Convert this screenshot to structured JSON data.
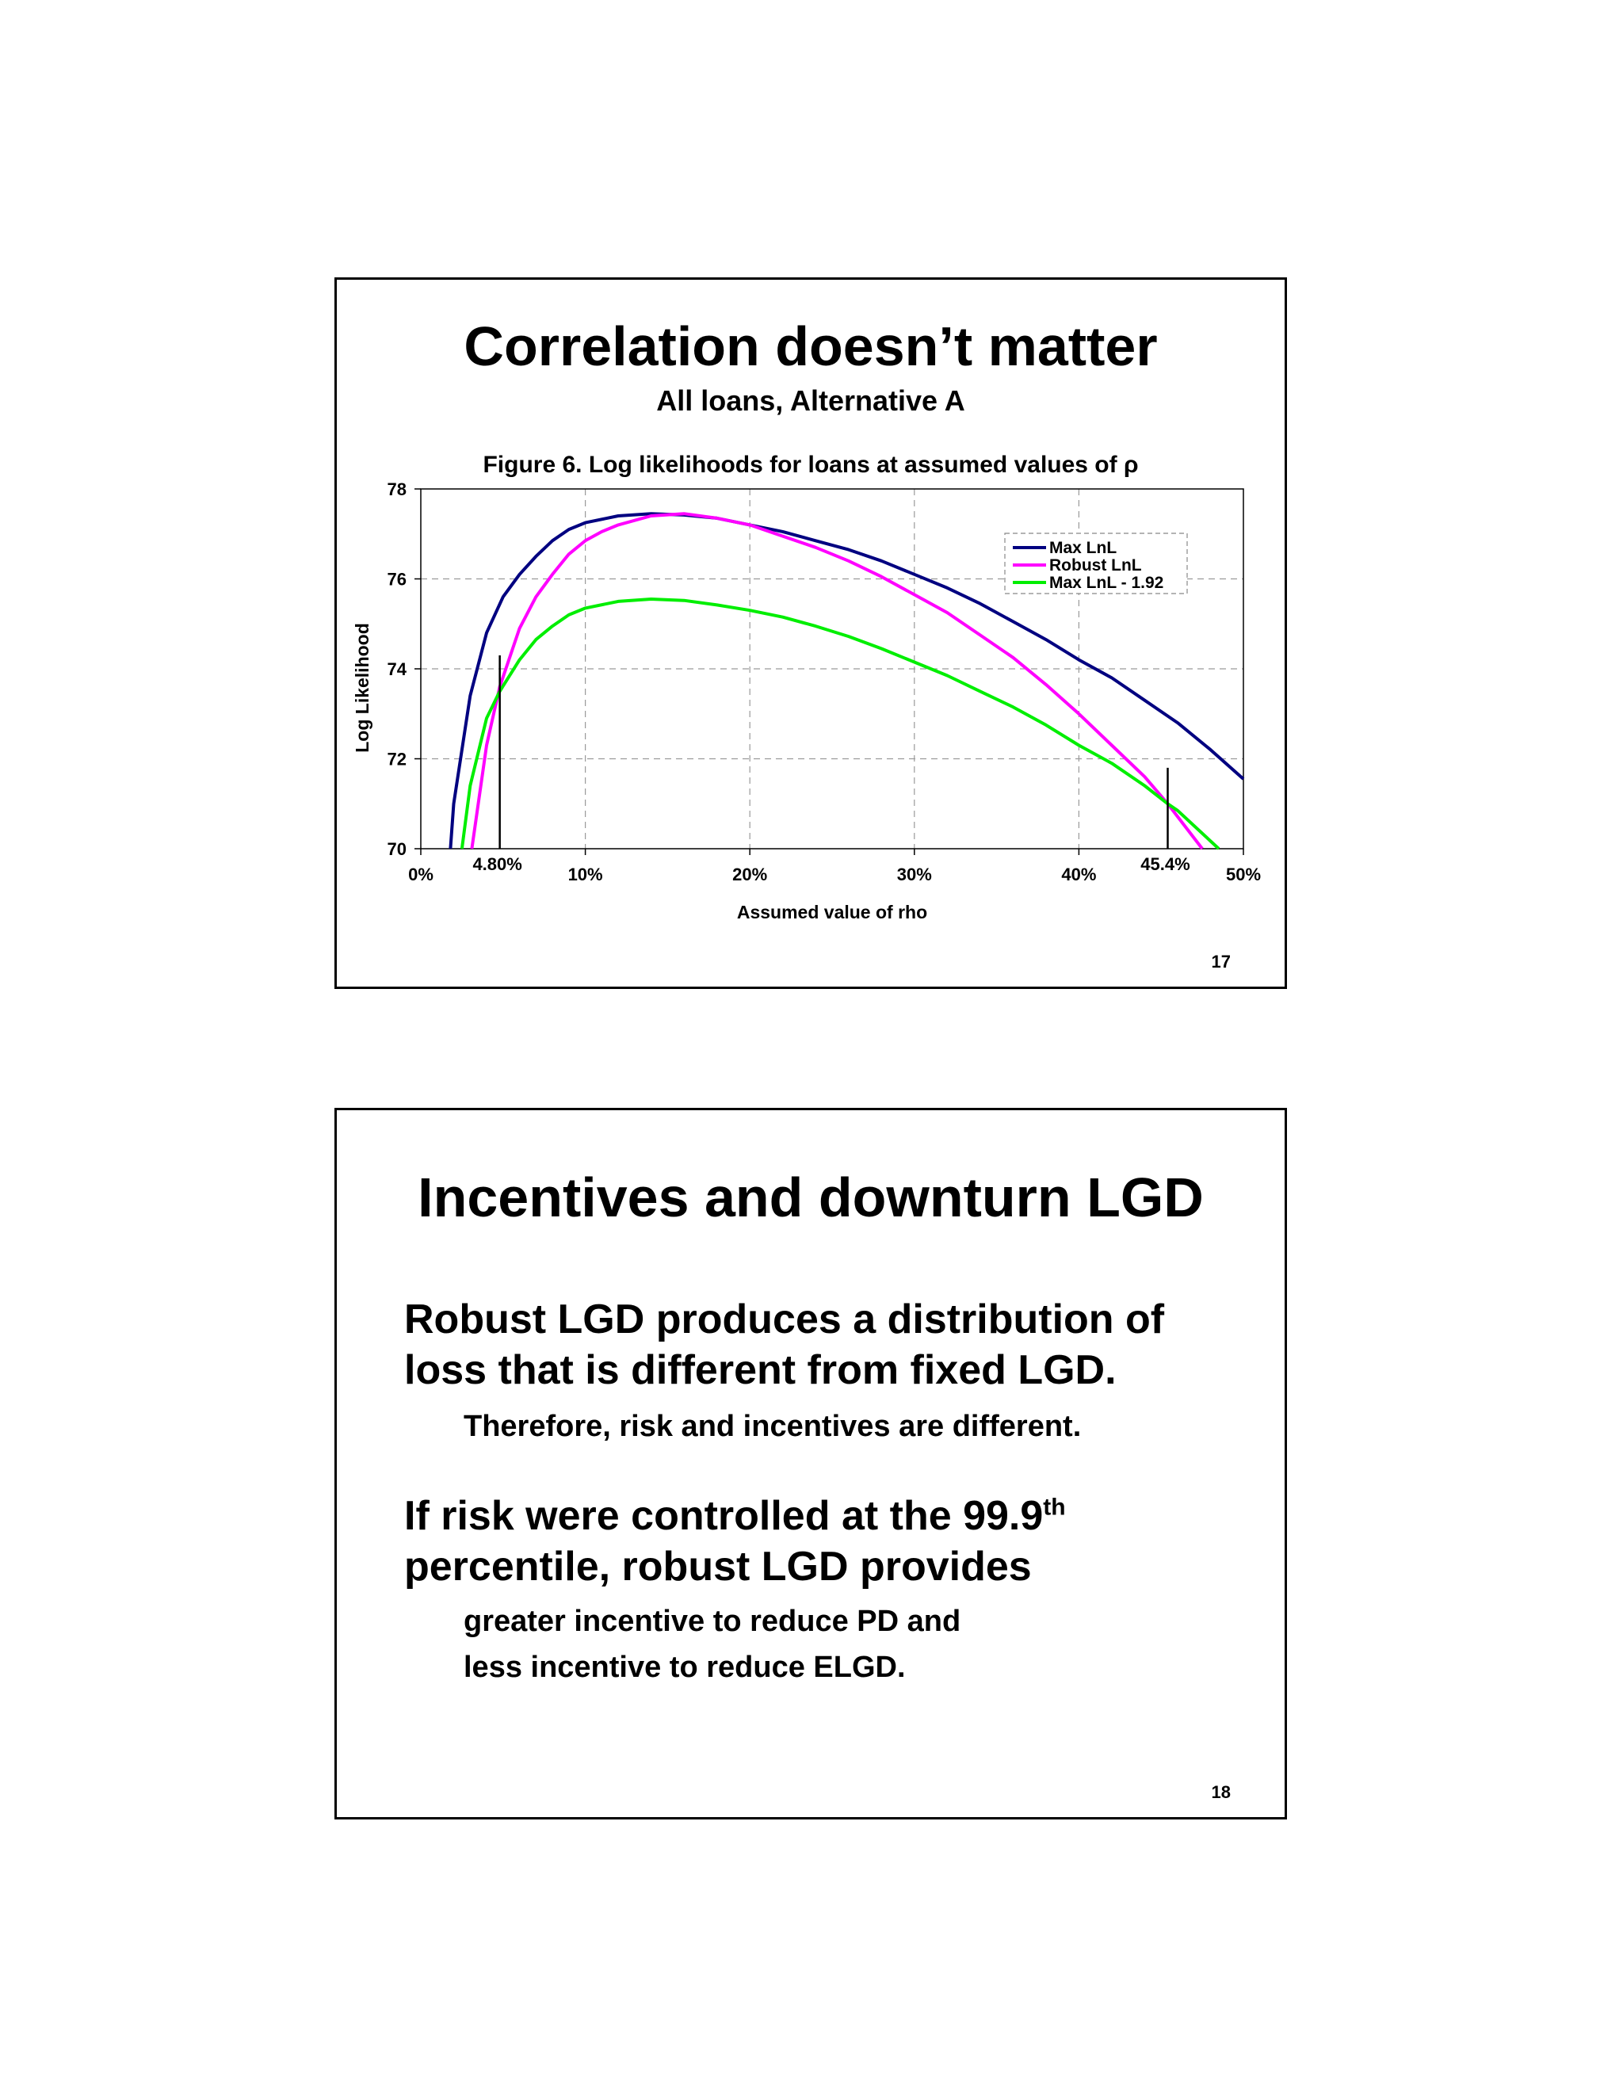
{
  "slide1": {
    "title": "Correlation doesn’t matter",
    "subtitle": "All loans, Alternative A",
    "page_number": "17"
  },
  "chart_data": {
    "type": "line",
    "title": "Figure 6. Log likelihoods for loans at assumed values of ρ",
    "xlabel": "Assumed value of rho",
    "ylabel": "Log Likelihood",
    "xlim": [
      0,
      50
    ],
    "ylim": [
      70,
      78
    ],
    "x_ticks": [
      0,
      10,
      20,
      30,
      40,
      50
    ],
    "x_tick_labels": [
      "0%",
      "10%",
      "20%",
      "30%",
      "40%",
      "50%"
    ],
    "y_ticks": [
      70,
      72,
      74,
      76,
      78
    ],
    "y_tick_labels": [
      "70",
      "72",
      "74",
      "76",
      "78"
    ],
    "grid": true,
    "legend_position": "top-right",
    "series": [
      {
        "name": "Max LnL",
        "color": "#000080",
        "points": [
          [
            1.8,
            70
          ],
          [
            2,
            71
          ],
          [
            3,
            73.4
          ],
          [
            4,
            74.8
          ],
          [
            5,
            75.6
          ],
          [
            6,
            76.1
          ],
          [
            7,
            76.5
          ],
          [
            8,
            76.85
          ],
          [
            9,
            77.1
          ],
          [
            10,
            77.25
          ],
          [
            12,
            77.4
          ],
          [
            14,
            77.45
          ],
          [
            16,
            77.42
          ],
          [
            18,
            77.35
          ],
          [
            20,
            77.2
          ],
          [
            22,
            77.05
          ],
          [
            24,
            76.85
          ],
          [
            26,
            76.65
          ],
          [
            28,
            76.4
          ],
          [
            30,
            76.1
          ],
          [
            32,
            75.8
          ],
          [
            34,
            75.45
          ],
          [
            36,
            75.05
          ],
          [
            38,
            74.65
          ],
          [
            40,
            74.2
          ],
          [
            42,
            73.8
          ],
          [
            44,
            73.3
          ],
          [
            46,
            72.8
          ],
          [
            48,
            72.2
          ],
          [
            50,
            71.55
          ]
        ]
      },
      {
        "name": "Robust LnL",
        "color": "#ff00ff",
        "points": [
          [
            3.1,
            70
          ],
          [
            4,
            72.3
          ],
          [
            4.8,
            73.6
          ],
          [
            6,
            74.9
          ],
          [
            7,
            75.6
          ],
          [
            8,
            76.1
          ],
          [
            9,
            76.55
          ],
          [
            10,
            76.85
          ],
          [
            11,
            77.05
          ],
          [
            12,
            77.2
          ],
          [
            14,
            77.4
          ],
          [
            16,
            77.45
          ],
          [
            18,
            77.35
          ],
          [
            20,
            77.2
          ],
          [
            22,
            76.95
          ],
          [
            24,
            76.7
          ],
          [
            26,
            76.4
          ],
          [
            28,
            76.05
          ],
          [
            30,
            75.65
          ],
          [
            32,
            75.25
          ],
          [
            34,
            74.75
          ],
          [
            36,
            74.25
          ],
          [
            38,
            73.65
          ],
          [
            40,
            73
          ],
          [
            42,
            72.3
          ],
          [
            44,
            71.6
          ],
          [
            45.4,
            71
          ],
          [
            47.5,
            70
          ]
        ]
      },
      {
        "name": "Max LnL - 1.92",
        "color": "#00ee00",
        "points": [
          [
            2.5,
            70
          ],
          [
            3,
            71.4
          ],
          [
            4,
            72.9
          ],
          [
            4.8,
            73.5
          ],
          [
            6,
            74.2
          ],
          [
            7,
            74.65
          ],
          [
            8,
            74.95
          ],
          [
            9,
            75.2
          ],
          [
            10,
            75.35
          ],
          [
            12,
            75.5
          ],
          [
            14,
            75.55
          ],
          [
            16,
            75.52
          ],
          [
            18,
            75.42
          ],
          [
            20,
            75.3
          ],
          [
            22,
            75.15
          ],
          [
            24,
            74.95
          ],
          [
            26,
            74.72
          ],
          [
            28,
            74.45
          ],
          [
            30,
            74.15
          ],
          [
            32,
            73.85
          ],
          [
            34,
            73.5
          ],
          [
            36,
            73.15
          ],
          [
            38,
            72.75
          ],
          [
            40,
            72.3
          ],
          [
            42,
            71.9
          ],
          [
            44,
            71.4
          ],
          [
            45.4,
            71
          ],
          [
            46,
            70.85
          ],
          [
            48.5,
            70
          ]
        ]
      }
    ],
    "annotations": [
      {
        "label": "4.80%",
        "x": 4.8,
        "y_top": 74.3
      },
      {
        "label": "45.4%",
        "x": 45.4,
        "y_top": 71.8
      }
    ]
  },
  "slide2": {
    "title": "Incentives and downturn LGD",
    "bullet1_line1": "Robust LGD produces a distribution of",
    "bullet1_line2": "loss that is different from fixed LGD.",
    "bullet1_sub": "Therefore, risk and incentives are different.",
    "bullet2_line1": "If risk were controlled at the 99.9",
    "bullet2_sup": "th",
    "bullet2_line2": "percentile, robust LGD provides",
    "bullet2_sub1": "greater incentive to reduce PD and",
    "bullet2_sub2": "less incentive to reduce ELGD.",
    "page_number": "18"
  }
}
